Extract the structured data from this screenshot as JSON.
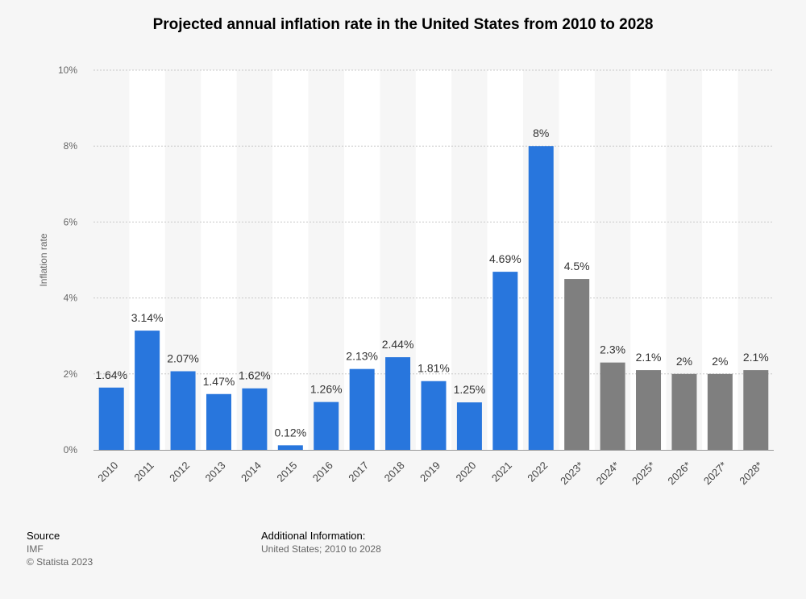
{
  "chart_data": {
    "type": "bar",
    "title": "Projected annual inflation rate in the United States from 2010 to 2028",
    "xlabel": "",
    "ylabel": "Inflation rate",
    "ylim": [
      0,
      10
    ],
    "yticks": [
      0,
      2,
      4,
      6,
      8,
      10
    ],
    "ytick_labels": [
      "0%",
      "2%",
      "4%",
      "6%",
      "8%",
      "10%"
    ],
    "categories": [
      "2010",
      "2011",
      "2012",
      "2013",
      "2014",
      "2015",
      "2016",
      "2017",
      "2018",
      "2019",
      "2020",
      "2021",
      "2022",
      "2023*",
      "2024*",
      "2025*",
      "2026*",
      "2027*",
      "2028*"
    ],
    "values": [
      1.64,
      3.14,
      2.07,
      1.47,
      1.62,
      0.12,
      1.26,
      2.13,
      2.44,
      1.81,
      1.25,
      4.69,
      8,
      4.5,
      2.3,
      2.1,
      2,
      2,
      2.1
    ],
    "value_labels": [
      "1.64%",
      "3.14%",
      "2.07%",
      "1.47%",
      "1.62%",
      "0.12%",
      "1.26%",
      "2.13%",
      "2.44%",
      "1.81%",
      "1.25%",
      "4.69%",
      "8%",
      "4.5%",
      "2.3%",
      "2.1%",
      "2%",
      "2%",
      "2.1%"
    ],
    "projected": [
      false,
      false,
      false,
      false,
      false,
      false,
      false,
      false,
      false,
      false,
      false,
      false,
      false,
      true,
      true,
      true,
      true,
      true,
      true
    ],
    "colors": {
      "actual": "#2876dd",
      "projected": "#7f7f7f"
    },
    "grid": true
  },
  "footer": {
    "source_heading": "Source",
    "source_name": "IMF",
    "copyright": "© Statista 2023",
    "additional_heading": "Additional Information:",
    "additional_text": "United States; 2010 to 2028"
  }
}
